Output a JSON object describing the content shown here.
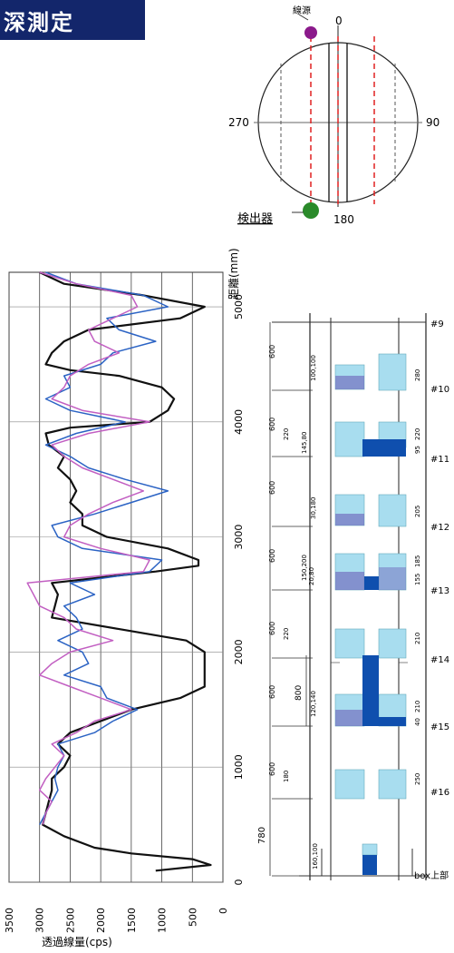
{
  "header": {
    "title": "深測定",
    "bg": "#13266b"
  },
  "top_diagram": {
    "label_source": "線源",
    "label_detector": "検出器",
    "angle_top": "0",
    "angle_bottom": "180",
    "angle_left": "270",
    "angle_right": "90",
    "colors": {
      "source": "#8b1a8b",
      "detector": "#2a8a2a",
      "beam": "#e02020"
    }
  },
  "chart_data": {
    "type": "line",
    "ylabel_cps": "透過線量(cps)",
    "xlabel_mm": "距離(mm)",
    "cps_ticks": [
      "3500",
      "3000",
      "2500",
      "2000",
      "1500",
      "1000",
      "500",
      "0"
    ],
    "mm_ticks": [
      "5000",
      "4000",
      "3000",
      "2000",
      "1000",
      "0"
    ],
    "cps_range": [
      3500,
      0
    ],
    "mm_range": [
      0,
      5300
    ],
    "series": [
      {
        "color": "#111111",
        "points": [
          [
            5300,
            3000
          ],
          [
            5200,
            2600
          ],
          [
            5100,
            1300
          ],
          [
            5000,
            300
          ],
          [
            4900,
            700
          ],
          [
            4800,
            2200
          ],
          [
            4700,
            2600
          ],
          [
            4600,
            2800
          ],
          [
            4500,
            2900
          ],
          [
            4450,
            2500
          ],
          [
            4400,
            1700
          ],
          [
            4300,
            1000
          ],
          [
            4200,
            800
          ],
          [
            4100,
            900
          ],
          [
            4000,
            1200
          ],
          [
            3950,
            2500
          ],
          [
            3900,
            2900
          ],
          [
            3800,
            2850
          ],
          [
            3700,
            2600
          ],
          [
            3600,
            2700
          ],
          [
            3500,
            2500
          ],
          [
            3400,
            2400
          ],
          [
            3300,
            2500
          ],
          [
            3200,
            2300
          ],
          [
            3100,
            2300
          ],
          [
            3000,
            1900
          ],
          [
            2900,
            900
          ],
          [
            2800,
            400
          ],
          [
            2750,
            400
          ],
          [
            2700,
            1100
          ],
          [
            2600,
            2800
          ],
          [
            2500,
            2700
          ],
          [
            2400,
            2750
          ],
          [
            2300,
            2800
          ],
          [
            2200,
            1700
          ],
          [
            2100,
            600
          ],
          [
            2000,
            300
          ],
          [
            1900,
            300
          ],
          [
            1800,
            300
          ],
          [
            1700,
            300
          ],
          [
            1600,
            700
          ],
          [
            1500,
            1500
          ],
          [
            1400,
            2000
          ],
          [
            1300,
            2500
          ],
          [
            1200,
            2700
          ],
          [
            1100,
            2500
          ],
          [
            1000,
            2600
          ],
          [
            900,
            2800
          ],
          [
            800,
            2800
          ],
          [
            700,
            2850
          ],
          [
            600,
            2900
          ],
          [
            500,
            2950
          ],
          [
            400,
            2600
          ],
          [
            300,
            2100
          ],
          [
            250,
            1500
          ],
          [
            200,
            500
          ],
          [
            150,
            200
          ],
          [
            100,
            1100
          ]
        ]
      },
      {
        "color": "#2b63c4",
        "points": [
          [
            5300,
            2900
          ],
          [
            5200,
            2400
          ],
          [
            5100,
            1300
          ],
          [
            5000,
            900
          ],
          [
            4900,
            1900
          ],
          [
            4800,
            1700
          ],
          [
            4700,
            1100
          ],
          [
            4600,
            1800
          ],
          [
            4500,
            2000
          ],
          [
            4400,
            2600
          ],
          [
            4300,
            2500
          ],
          [
            4200,
            2900
          ],
          [
            4100,
            2500
          ],
          [
            4000,
            1600
          ],
          [
            3900,
            2400
          ],
          [
            3800,
            2900
          ],
          [
            3700,
            2500
          ],
          [
            3600,
            2200
          ],
          [
            3500,
            1600
          ],
          [
            3400,
            900
          ],
          [
            3300,
            1500
          ],
          [
            3200,
            2100
          ],
          [
            3100,
            2800
          ],
          [
            3000,
            2700
          ],
          [
            2900,
            2300
          ],
          [
            2800,
            1000
          ],
          [
            2700,
            1200
          ],
          [
            2600,
            2500
          ],
          [
            2500,
            2100
          ],
          [
            2400,
            2600
          ],
          [
            2300,
            2400
          ],
          [
            2200,
            2300
          ],
          [
            2100,
            2700
          ],
          [
            2000,
            2300
          ],
          [
            1900,
            2200
          ],
          [
            1800,
            2600
          ],
          [
            1700,
            2000
          ],
          [
            1600,
            1900
          ],
          [
            1500,
            1400
          ],
          [
            1400,
            1800
          ],
          [
            1300,
            2100
          ],
          [
            1200,
            2700
          ],
          [
            1100,
            2600
          ],
          [
            1000,
            2700
          ],
          [
            900,
            2750
          ],
          [
            800,
            2700
          ],
          [
            700,
            2800
          ],
          [
            600,
            2900
          ],
          [
            500,
            3000
          ]
        ]
      },
      {
        "color": "#c25fc2",
        "points": [
          [
            5300,
            3000
          ],
          [
            5200,
            2400
          ],
          [
            5100,
            1500
          ],
          [
            5000,
            1400
          ],
          [
            4900,
            1800
          ],
          [
            4800,
            2200
          ],
          [
            4700,
            2100
          ],
          [
            4600,
            1700
          ],
          [
            4500,
            2200
          ],
          [
            4400,
            2500
          ],
          [
            4300,
            2600
          ],
          [
            4200,
            2800
          ],
          [
            4100,
            2300
          ],
          [
            4000,
            1200
          ],
          [
            3900,
            2200
          ],
          [
            3800,
            2800
          ],
          [
            3700,
            2600
          ],
          [
            3600,
            2300
          ],
          [
            3500,
            1800
          ],
          [
            3400,
            1300
          ],
          [
            3300,
            1800
          ],
          [
            3200,
            2200
          ],
          [
            3100,
            2500
          ],
          [
            3000,
            2600
          ],
          [
            2900,
            2000
          ],
          [
            2800,
            1200
          ],
          [
            2700,
            1300
          ],
          [
            2600,
            3200
          ],
          [
            2500,
            3100
          ],
          [
            2400,
            3000
          ],
          [
            2300,
            2600
          ],
          [
            2200,
            2400
          ],
          [
            2100,
            1800
          ],
          [
            2000,
            2500
          ],
          [
            1900,
            2800
          ],
          [
            1800,
            3000
          ],
          [
            1700,
            2500
          ],
          [
            1600,
            2000
          ],
          [
            1500,
            1500
          ],
          [
            1400,
            2100
          ],
          [
            1300,
            2400
          ],
          [
            1200,
            2800
          ],
          [
            1100,
            2600
          ],
          [
            1000,
            2750
          ],
          [
            900,
            2900
          ],
          [
            800,
            3000
          ],
          [
            700,
            2800
          ],
          [
            600,
            2900
          ],
          [
            500,
            2950
          ]
        ]
      }
    ]
  },
  "right_diagram": {
    "spacing": [
      "600",
      "600",
      "600",
      "600",
      "600",
      "600",
      "600"
    ],
    "markers": [
      "#9",
      "#10",
      "#11",
      "#12",
      "#13",
      "#14",
      "#15",
      "#16"
    ],
    "bottom_label": "box上部",
    "dim_780": "780",
    "dim_800": "800",
    "labels_left": [
      "100,100",
      "220",
      "145,80",
      "30,180",
      "150,200",
      "20,80",
      "220",
      "120,140",
      "180",
      "160,100"
    ],
    "labels_right": [
      "280",
      "220",
      "95",
      "205",
      "185",
      "155",
      "210",
      "210",
      "40",
      "250"
    ],
    "colors": {
      "cyan": "#a8ddef",
      "blue": "#0f4fae",
      "purple": "#6a5fb8"
    }
  }
}
